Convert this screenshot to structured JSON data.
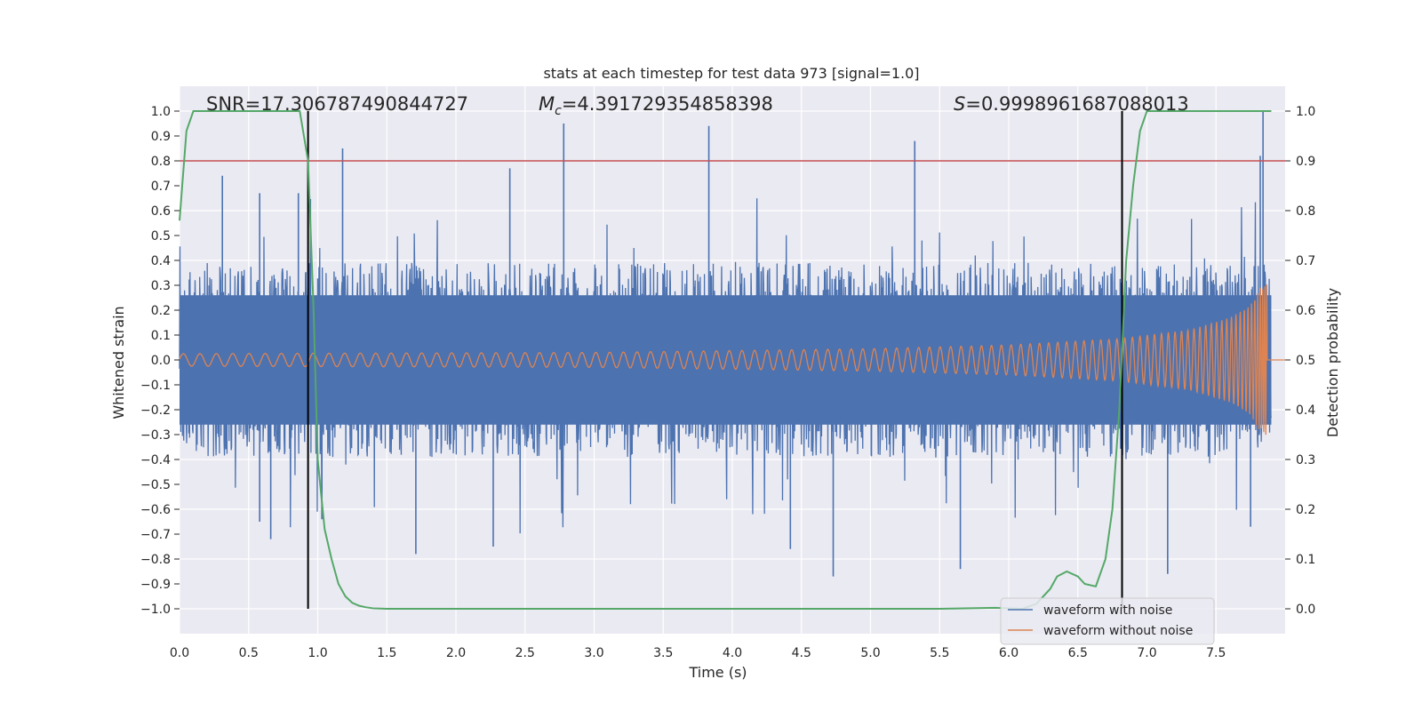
{
  "chart_data": {
    "type": "line",
    "title": "stats at each timestep for test data 973 [signal=1.0]",
    "xlabel": "Time (s)",
    "ylabel_left": "Whitened strain",
    "ylabel_right": "Detection probability",
    "xlim": [
      0.0,
      8.0
    ],
    "ylim_left": [
      -1.1,
      1.1
    ],
    "ylim_right": [
      -0.05,
      1.05
    ],
    "x_ticks": [
      "0.0",
      "0.5",
      "1.0",
      "1.5",
      "2.0",
      "2.5",
      "3.0",
      "3.5",
      "4.0",
      "4.5",
      "5.0",
      "5.5",
      "6.0",
      "6.5",
      "7.0",
      "7.5"
    ],
    "y_left_ticks": [
      "1.0",
      "0.9",
      "0.8",
      "0.7",
      "0.6",
      "0.5",
      "0.4",
      "0.3",
      "0.2",
      "0.1",
      "0.0",
      "−0.1",
      "−0.2",
      "−0.3",
      "−0.4",
      "−0.5",
      "−0.6",
      "−0.7",
      "−0.8",
      "−0.9",
      "−1.0"
    ],
    "y_right_ticks": [
      "1.0",
      "0.9",
      "0.8",
      "0.7",
      "0.6",
      "0.5",
      "0.4",
      "0.3",
      "0.2",
      "0.1",
      "0.0"
    ],
    "annotations": {
      "snr": "SNR=17.306787490844727",
      "mc_symbol": "M",
      "mc_sub": "c",
      "mc_value": "=4.391729354858398",
      "s_symbol": "S",
      "s_value": "=0.9998961687088013"
    },
    "threshold": {
      "value": 0.9,
      "axis": "right",
      "color": "#c44e52"
    },
    "vertical_lines": [
      0.93,
      6.82
    ],
    "vertical_lines_range": [
      -1.0,
      1.0
    ],
    "series": [
      {
        "name": "waveform with noise",
        "color": "#4c72b0",
        "description": "whitened noisy strain, band approx -0.35..0.35 with spikes up to ~0.95",
        "envelope": {
          "t": [
            0,
            7.9
          ],
          "base_amplitude": 0.3
        },
        "spikes": [
          [
            0.31,
            0.74
          ],
          [
            0.58,
            0.67
          ],
          [
            0.86,
            0.67
          ],
          [
            1.18,
            0.85
          ],
          [
            2.39,
            0.77
          ],
          [
            2.78,
            0.95
          ],
          [
            3.83,
            0.94
          ],
          [
            5.32,
            0.88
          ],
          [
            7.84,
            1.0
          ],
          [
            7.82,
            0.82
          ],
          [
            0.58,
            -0.65
          ],
          [
            0.66,
            -0.72
          ],
          [
            1.03,
            -0.64
          ],
          [
            1.71,
            -0.78
          ],
          [
            2.27,
            -0.75
          ],
          [
            4.42,
            -0.76
          ],
          [
            4.73,
            -0.87
          ],
          [
            5.65,
            -0.84
          ],
          [
            6.82,
            -1.0
          ],
          [
            7.15,
            -0.86
          ],
          [
            7.75,
            -0.67
          ]
        ]
      },
      {
        "name": "waveform without noise",
        "color": "#dd8452",
        "description": "chirp signal growing in amplitude and frequency, ending near t=7.87 s",
        "amplitude_points": [
          [
            0.0,
            0.025
          ],
          [
            3.0,
            0.03
          ],
          [
            5.0,
            0.045
          ],
          [
            6.0,
            0.06
          ],
          [
            6.8,
            0.085
          ],
          [
            7.3,
            0.12
          ],
          [
            7.6,
            0.17
          ],
          [
            7.75,
            0.22
          ],
          [
            7.83,
            0.3
          ],
          [
            7.86,
            0.31
          ]
        ],
        "end_time": 7.87
      },
      {
        "name": "detection probability",
        "color": "#55a868",
        "axis": "right",
        "x": [
          0.0,
          0.05,
          0.1,
          0.15,
          0.2,
          0.5,
          0.8,
          0.87,
          0.93,
          0.97,
          1.0,
          1.05,
          1.1,
          1.15,
          1.2,
          1.25,
          1.3,
          1.35,
          1.4,
          1.5,
          2.0,
          3.0,
          4.0,
          5.0,
          5.5,
          5.9,
          6.0,
          6.1,
          6.2,
          6.3,
          6.35,
          6.42,
          6.5,
          6.55,
          6.63,
          6.7,
          6.75,
          6.8,
          6.85,
          6.9,
          6.95,
          7.0,
          7.5,
          7.9
        ],
        "y": [
          0.78,
          0.96,
          1.0,
          1.0,
          1.0,
          1.0,
          1.0,
          1.0,
          0.9,
          0.6,
          0.3,
          0.16,
          0.1,
          0.05,
          0.025,
          0.012,
          0.006,
          0.003,
          0.001,
          0.0,
          0.0,
          0.0,
          0.0,
          0.0,
          0.0,
          0.002,
          0.001,
          0.0,
          0.01,
          0.04,
          0.065,
          0.075,
          0.065,
          0.05,
          0.045,
          0.1,
          0.2,
          0.4,
          0.7,
          0.85,
          0.96,
          1.0,
          1.0,
          1.0
        ]
      }
    ],
    "legend": {
      "position": "lower-right",
      "entries": [
        {
          "label": "waveform with noise",
          "color": "#4c72b0"
        },
        {
          "label": "waveform without noise",
          "color": "#dd8452"
        }
      ]
    },
    "style": {
      "plot_bg": "#eaeaf2",
      "grid": "#ffffff"
    }
  }
}
